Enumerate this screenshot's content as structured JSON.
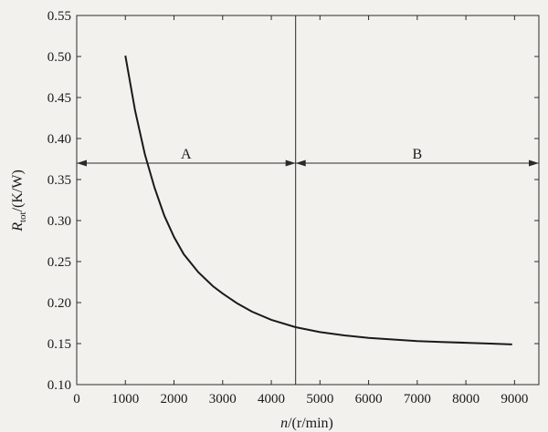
{
  "chart_data": {
    "type": "line",
    "xlabel_main": "n",
    "xlabel_unit": "/(r/min)",
    "ylabel_main": "R",
    "ylabel_sub": "tot",
    "ylabel_unit": "/(K/W)",
    "xlim": [
      0,
      9500
    ],
    "ylim": [
      0.1,
      0.55
    ],
    "xticks": [
      0,
      1000,
      2000,
      3000,
      4000,
      5000,
      6000,
      7000,
      8000,
      9000
    ],
    "yticks": [
      0.1,
      0.15,
      0.2,
      0.25,
      0.3,
      0.35,
      0.4,
      0.45,
      0.5,
      0.55
    ],
    "grid": false,
    "divider_x": 4500,
    "regions": [
      {
        "label": "A",
        "from": 0,
        "to": 4500,
        "y": 0.37
      },
      {
        "label": "B",
        "from": 4500,
        "to": 9500,
        "y": 0.37
      }
    ],
    "series": [
      {
        "x": [
          1000,
          1200,
          1400,
          1600,
          1800,
          2000,
          2200,
          2500,
          2800,
          3000,
          3300,
          3600,
          4000,
          4500,
          5000,
          5500,
          6000,
          6500,
          7000,
          7500,
          8000,
          8500,
          8950
        ],
        "y": [
          0.501,
          0.434,
          0.381,
          0.34,
          0.306,
          0.28,
          0.259,
          0.237,
          0.22,
          0.211,
          0.199,
          0.189,
          0.179,
          0.17,
          0.164,
          0.16,
          0.157,
          0.155,
          0.153,
          0.152,
          0.151,
          0.15,
          0.149
        ]
      }
    ]
  }
}
